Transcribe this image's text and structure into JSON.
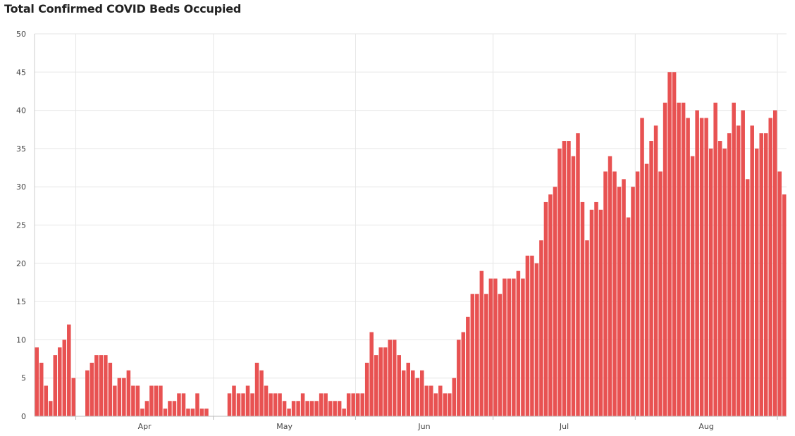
{
  "chart_data": {
    "type": "bar",
    "title": "Total Confirmed COVID Beds Occupied",
    "xlabel": "",
    "ylabel": "",
    "ylim": [
      0,
      50
    ],
    "yticks": [
      0,
      5,
      10,
      15,
      20,
      25,
      30,
      35,
      40,
      45,
      50
    ],
    "xticks": [
      "Apr",
      "May",
      "Jun",
      "Jul",
      "Aug"
    ],
    "grid": true,
    "color": "#e85252",
    "values": [
      9,
      7,
      4,
      2,
      8,
      9,
      10,
      12,
      5,
      0,
      0,
      6,
      7,
      8,
      8,
      8,
      7,
      4,
      5,
      5,
      6,
      4,
      4,
      1,
      2,
      4,
      4,
      4,
      1,
      2,
      2,
      3,
      3,
      1,
      1,
      3,
      1,
      1,
      0,
      0,
      0,
      0,
      3,
      4,
      3,
      3,
      4,
      3,
      7,
      6,
      4,
      3,
      3,
      3,
      2,
      1,
      2,
      2,
      3,
      2,
      2,
      2,
      3,
      3,
      2,
      2,
      2,
      1,
      3,
      3,
      3,
      3,
      7,
      11,
      8,
      9,
      9,
      10,
      10,
      8,
      6,
      7,
      6,
      5,
      6,
      4,
      4,
      3,
      4,
      3,
      3,
      5,
      10,
      11,
      13,
      16,
      16,
      19,
      16,
      18,
      18,
      16,
      18,
      18,
      18,
      19,
      18,
      21,
      21,
      20,
      23,
      28,
      29,
      30,
      35,
      36,
      36,
      34,
      37,
      28,
      23,
      27,
      28,
      27,
      32,
      34,
      32,
      30,
      31,
      26,
      30,
      32,
      39,
      33,
      36,
      38,
      32,
      41,
      45,
      45,
      41,
      41,
      39,
      34,
      40,
      39,
      39,
      35,
      41,
      36,
      35,
      37,
      41,
      38,
      40,
      31,
      38,
      35,
      37,
      37,
      39,
      40,
      32,
      29
    ]
  }
}
